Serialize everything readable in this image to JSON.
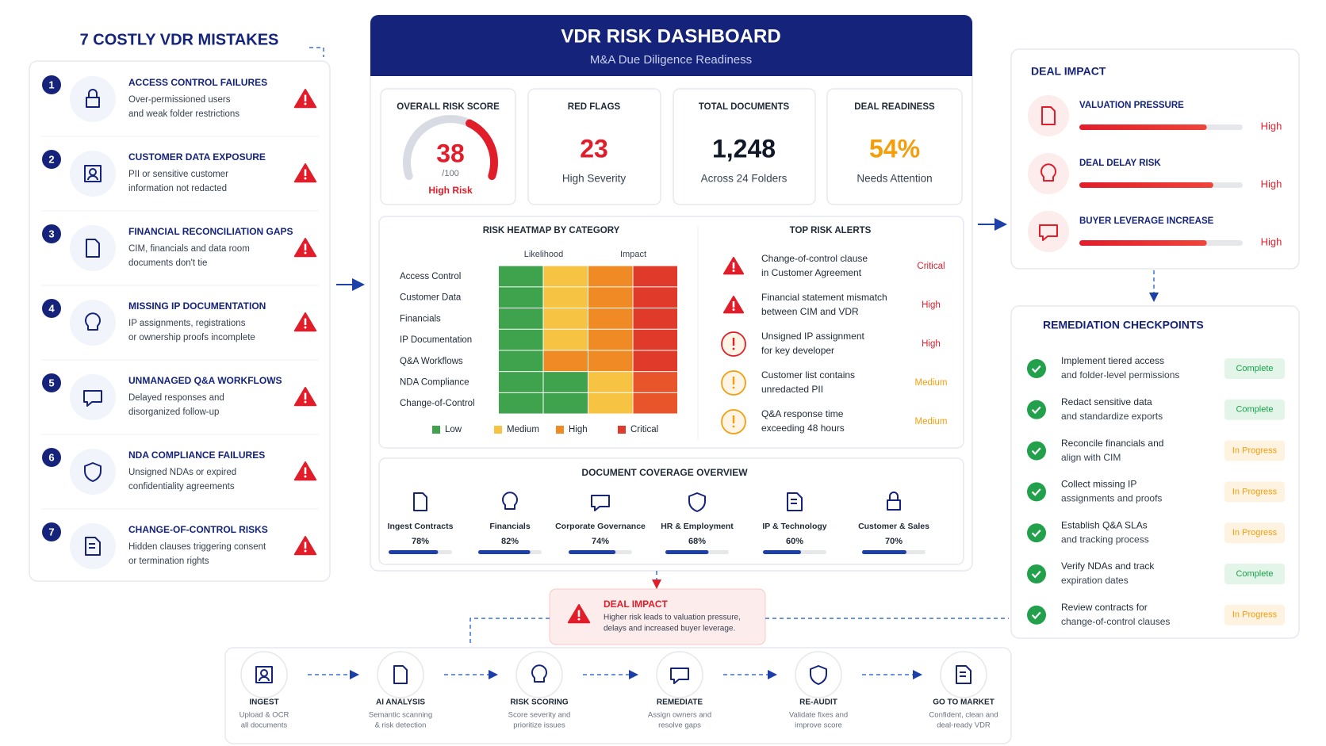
{
  "mistakes": {
    "title": "7 COSTLY VDR MISTAKES",
    "items": [
      {
        "number": 1,
        "title": "ACCESS CONTROL FAILURES",
        "description": [
          "Over-permissioned users",
          "and weak folder restrictions"
        ]
      },
      {
        "number": 2,
        "title": "CUSTOMER DATA EXPOSURE",
        "description": [
          "PII or sensitive customer",
          "information not redacted"
        ]
      },
      {
        "number": 3,
        "title": "FINANCIAL RECONCILIATION GAPS",
        "description": [
          "CIM, financials and data room",
          "documents don't tie"
        ]
      },
      {
        "number": 4,
        "title": "MISSING IP DOCUMENTATION",
        "description": [
          "IP assignments, registrations",
          "or ownership proofs incomplete"
        ]
      },
      {
        "number": 5,
        "title": "UNMANAGED Q&A WORKFLOWS",
        "description": [
          "Delayed responses and",
          "disorganized follow-up"
        ]
      },
      {
        "number": 6,
        "title": "NDA COMPLIANCE FAILURES",
        "description": [
          "Unsigned NDAs or expired",
          "confidentiality agreements"
        ]
      },
      {
        "number": 7,
        "title": "CHANGE-OF-CONTROL RISKS",
        "description": [
          "Hidden clauses triggering consent",
          "or termination rights"
        ]
      }
    ]
  },
  "dashboard": {
    "title": "VDR RISK DASHBOARD",
    "subtitle": "M&A Due Diligence Readiness",
    "risk_score": {
      "title": "OVERALL RISK SCORE",
      "score": 38,
      "scale": {
        "value": 100,
        "label": "/100"
      },
      "status": "High Risk"
    },
    "red_flags": {
      "title": "RED FLAGS",
      "value": 23,
      "caption": "High Severity"
    },
    "total_documents": {
      "title": "TOTAL DOCUMENTS",
      "value": {
        "value": 1248,
        "label": "1,248"
      },
      "caption": "Across 24 Folders"
    },
    "deal_readiness": {
      "title": "DEAL READINESS",
      "value": {
        "value": 54,
        "label": "54%"
      },
      "caption": "Needs Attention"
    },
    "heatmap": {
      "title": "RISK HEATMAP BY CATEGORY",
      "column_groups": [
        "Likelihood",
        "Impact"
      ],
      "rows": [
        {
          "label": "Access Control",
          "cells": [
            "#3fa34d",
            "#f6c343",
            "#f08a24",
            "#e03a2a"
          ]
        },
        {
          "label": "Customer Data",
          "cells": [
            "#3fa34d",
            "#f6c343",
            "#f08a24",
            "#e03a2a"
          ]
        },
        {
          "label": "Financials",
          "cells": [
            "#3fa34d",
            "#f6c343",
            "#f08a24",
            "#e03a2a"
          ]
        },
        {
          "label": "IP Documentation",
          "cells": [
            "#3fa34d",
            "#f6c343",
            "#f08a24",
            "#e03a2a"
          ]
        },
        {
          "label": "Q&A Workflows",
          "cells": [
            "#3fa34d",
            "#f08a24",
            "#f08a24",
            "#e03a2a"
          ]
        },
        {
          "label": "NDA Compliance",
          "cells": [
            "#3fa34d",
            "#3fa34d",
            "#f6c343",
            "#e8552b"
          ]
        },
        {
          "label": "Change-of-Control",
          "cells": [
            "#3fa34d",
            "#3fa34d",
            "#f6c343",
            "#e8552b"
          ]
        }
      ],
      "legend": [
        {
          "name": "Low",
          "color": "#3fa34d"
        },
        {
          "name": "Medium",
          "color": "#f6c343"
        },
        {
          "name": "High",
          "color": "#f08a24"
        },
        {
          "name": "Critical",
          "color": "#e03a2a"
        }
      ]
    },
    "alerts": {
      "title": "TOP RISK ALERTS",
      "items": [
        {
          "text": [
            "Change-of-control clause",
            "in Customer Agreement"
          ],
          "severity": "Critical",
          "color": "#e11d2a",
          "icon": "triangle"
        },
        {
          "text": [
            "Financial statement mismatch",
            "between CIM and VDR"
          ],
          "severity": "High",
          "color": "#e11d2a",
          "icon": "triangle"
        },
        {
          "text": [
            "Unsigned IP assignment",
            "for key developer"
          ],
          "severity": "High",
          "color": "#e11d2a",
          "icon": "circle"
        },
        {
          "text": [
            "Customer list contains",
            "unredacted PII"
          ],
          "severity": "Medium",
          "color": "#f59e0b",
          "icon": "circle"
        },
        {
          "text": [
            "Q&A response time",
            "exceeding 48 hours"
          ],
          "severity": "Medium",
          "color": "#f59e0b",
          "icon": "circle"
        }
      ]
    },
    "coverage": {
      "title": "DOCUMENT COVERAGE OVERVIEW",
      "items": [
        {
          "label": "Ingest Contracts",
          "value": 78,
          "value_label": "78%"
        },
        {
          "label": "Financials",
          "value": 82,
          "value_label": "82%"
        },
        {
          "label": "Corporate Governance",
          "value": 74,
          "value_label": "74%"
        },
        {
          "label": "HR & Employment",
          "value": 68,
          "value_label": "68%"
        },
        {
          "label": "IP & Technology",
          "value": 60,
          "value_label": "60%"
        },
        {
          "label": "Customer & Sales",
          "value": 70,
          "value_label": "70%"
        }
      ]
    }
  },
  "deal_impact": {
    "title": "DEAL IMPACT",
    "items": [
      {
        "title": "VALUATION PRESSURE",
        "level": 78,
        "level_label": "High"
      },
      {
        "title": "DEAL DELAY RISK",
        "level": 82,
        "level_label": "High"
      },
      {
        "title": "BUYER LEVERAGE INCREASE",
        "level": 78,
        "level_label": "High"
      }
    ]
  },
  "remediation": {
    "title": "REMEDIATION CHECKPOINTS",
    "items": [
      {
        "text": [
          "Implement tiered access",
          "and folder-level permissions"
        ],
        "status": "Complete",
        "status_color": "#16a34a"
      },
      {
        "text": [
          "Redact sensitive data",
          "and standardize exports"
        ],
        "status": "Complete",
        "status_color": "#16a34a"
      },
      {
        "text": [
          "Reconcile financials and",
          "align with CIM"
        ],
        "status": "In Progress",
        "status_color": "#f59e0b"
      },
      {
        "text": [
          "Collect missing IP",
          "assignments and proofs"
        ],
        "status": "In Progress",
        "status_color": "#f59e0b"
      },
      {
        "text": [
          "Establish Q&A SLAs",
          "and tracking process"
        ],
        "status": "In Progress",
        "status_color": "#f59e0b"
      },
      {
        "text": [
          "Verify NDAs and track",
          "expiration dates"
        ],
        "status": "Complete",
        "status_color": "#16a34a"
      },
      {
        "text": [
          "Review contracts for",
          "change-of-control clauses"
        ],
        "status": "In Progress",
        "status_color": "#f59e0b"
      }
    ]
  },
  "callout": {
    "title": "DEAL IMPACT",
    "text": [
      "Higher risk leads to valuation pressure,",
      "delays and increased buyer leverage."
    ]
  },
  "workflow": {
    "steps": [
      {
        "title": "INGEST",
        "text": [
          "Upload & OCR",
          "all documents"
        ]
      },
      {
        "title": "AI ANALYSIS",
        "text": [
          "Semantic scanning",
          "& risk detection"
        ]
      },
      {
        "title": "RISK SCORING",
        "text": [
          "Score severity and",
          "prioritize issues"
        ]
      },
      {
        "title": "REMEDIATE",
        "text": [
          "Assign owners and",
          "resolve gaps"
        ]
      },
      {
        "title": "RE-AUDIT",
        "text": [
          "Validate fixes and",
          "improve score"
        ]
      },
      {
        "title": "GO TO MARKET",
        "text": [
          "Confident, clean and",
          "deal-ready VDR"
        ]
      }
    ]
  }
}
